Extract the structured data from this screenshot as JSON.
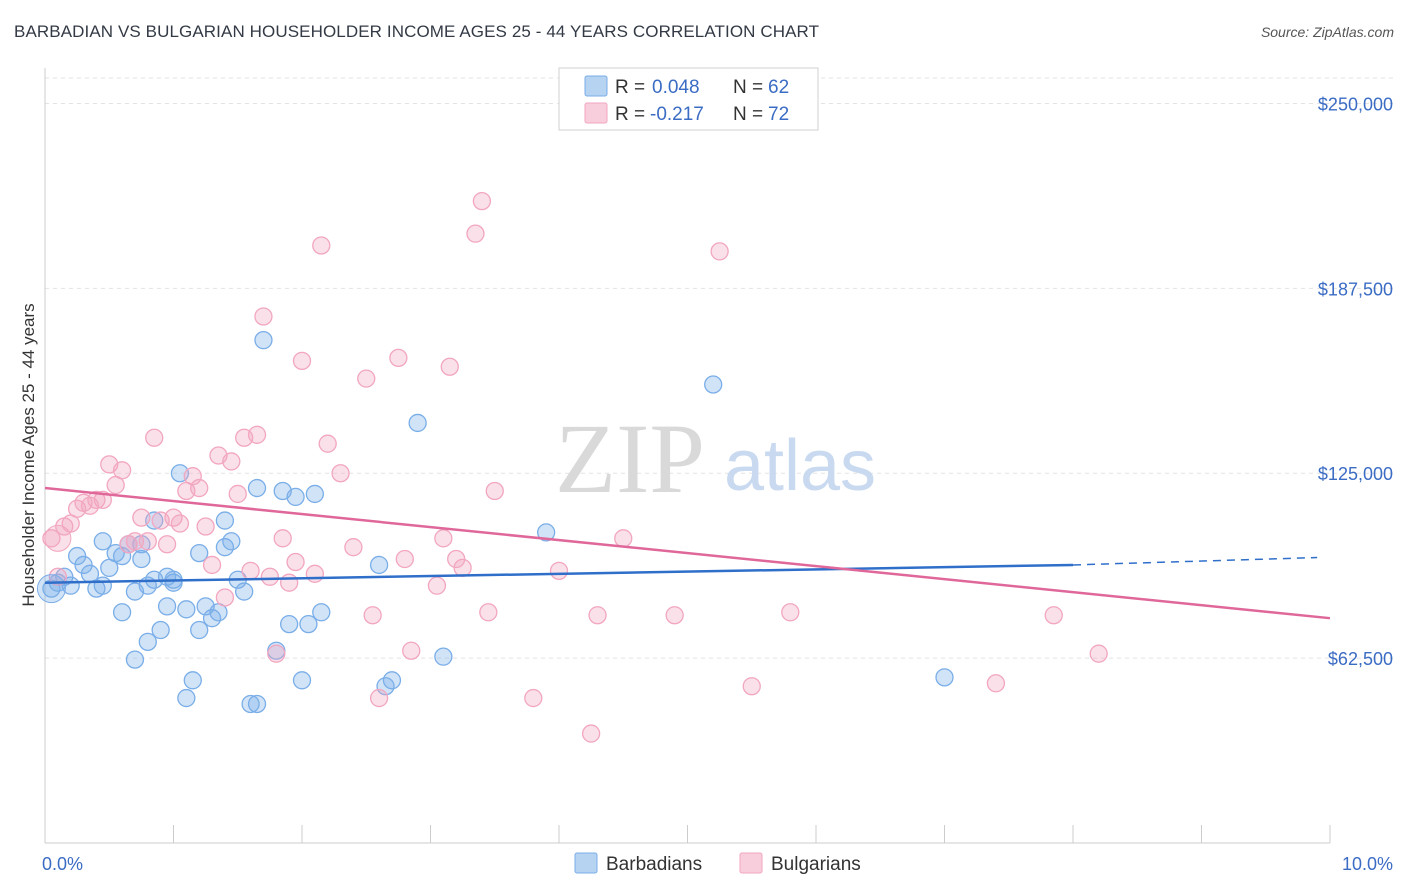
{
  "title": "BARBADIAN VS BULGARIAN HOUSEHOLDER INCOME AGES 25 - 44 YEARS CORRELATION CHART",
  "source": "Source: ZipAtlas.com",
  "watermark": {
    "zip": "ZIP",
    "atlas": "atlas"
  },
  "chart_data": {
    "type": "scatter",
    "ylabel": "Householder Income Ages 25 - 44 years",
    "x_tick_labels": [
      "0.0%",
      "10.0%"
    ],
    "y_tick_labels": [
      "$62,500",
      "$125,000",
      "$187,500",
      "$250,000"
    ],
    "y_ticks": [
      62500,
      125000,
      187500,
      250000
    ],
    "xlim": [
      0,
      10
    ],
    "ylim": [
      0,
      262000
    ],
    "grid": true,
    "legend_position": "top-center",
    "series": [
      {
        "name": "Barbadians",
        "color": "#7aaee8",
        "line_color": "#2f6fca",
        "R_label": "R =",
        "R": "0.048",
        "N_label": "N =",
        "N": "62",
        "trend": {
          "x0": 0.0,
          "y0": 88000,
          "x1": 8.0,
          "y1": 94000,
          "dash_to_x": 9.9,
          "dash_to_y": 96500
        },
        "points": [
          [
            0.05,
            86000
          ],
          [
            0.1,
            88000
          ],
          [
            0.15,
            90000
          ],
          [
            0.2,
            87000
          ],
          [
            0.25,
            97000
          ],
          [
            0.3,
            94000
          ],
          [
            0.35,
            91000
          ],
          [
            0.4,
            86000
          ],
          [
            0.45,
            87000
          ],
          [
            0.45,
            102000
          ],
          [
            0.5,
            93000
          ],
          [
            0.55,
            98000
          ],
          [
            0.6,
            97000
          ],
          [
            0.6,
            78000
          ],
          [
            0.65,
            101000
          ],
          [
            0.7,
            85000
          ],
          [
            0.75,
            101000
          ],
          [
            0.7,
            62000
          ],
          [
            0.75,
            96000
          ],
          [
            0.8,
            68000
          ],
          [
            0.8,
            87000
          ],
          [
            0.85,
            89000
          ],
          [
            0.85,
            109000
          ],
          [
            0.9,
            72000
          ],
          [
            0.95,
            80000
          ],
          [
            0.95,
            90000
          ],
          [
            1.0,
            89000
          ],
          [
            1.0,
            88000
          ],
          [
            1.05,
            125000
          ],
          [
            1.1,
            49000
          ],
          [
            1.1,
            79000
          ],
          [
            1.15,
            55000
          ],
          [
            1.2,
            98000
          ],
          [
            1.2,
            72000
          ],
          [
            1.25,
            80000
          ],
          [
            1.3,
            76000
          ],
          [
            1.35,
            78000
          ],
          [
            1.4,
            100000
          ],
          [
            1.4,
            109000
          ],
          [
            1.45,
            102000
          ],
          [
            1.5,
            89000
          ],
          [
            1.55,
            85000
          ],
          [
            1.6,
            47000
          ],
          [
            1.65,
            47000
          ],
          [
            1.65,
            120000
          ],
          [
            1.7,
            170000
          ],
          [
            1.8,
            65000
          ],
          [
            1.85,
            119000
          ],
          [
            1.9,
            74000
          ],
          [
            1.95,
            117000
          ],
          [
            2.0,
            55000
          ],
          [
            2.1,
            118000
          ],
          [
            2.15,
            78000
          ],
          [
            2.05,
            74000
          ],
          [
            2.6,
            94000
          ],
          [
            2.7,
            55000
          ],
          [
            2.65,
            53000
          ],
          [
            2.9,
            142000
          ],
          [
            3.1,
            63000
          ],
          [
            3.9,
            105000
          ],
          [
            5.2,
            155000
          ],
          [
            7.0,
            56000
          ]
        ]
      },
      {
        "name": "Bulgarians",
        "color": "#f2a6c0",
        "line_color": "#e0679a",
        "R_label": "R =",
        "R": "-0.217",
        "N_label": "N =",
        "N": "72",
        "trend": {
          "x0": 0.0,
          "y0": 120000,
          "x1": 10.0,
          "y1": 76000
        },
        "points": [
          [
            0.05,
            103000
          ],
          [
            0.1,
            90000
          ],
          [
            0.15,
            107000
          ],
          [
            0.2,
            108000
          ],
          [
            0.25,
            113000
          ],
          [
            0.3,
            115000
          ],
          [
            0.35,
            114000
          ],
          [
            0.4,
            116000
          ],
          [
            0.45,
            116000
          ],
          [
            0.5,
            128000
          ],
          [
            0.55,
            121000
          ],
          [
            0.6,
            126000
          ],
          [
            0.65,
            101000
          ],
          [
            0.7,
            102000
          ],
          [
            0.75,
            110000
          ],
          [
            0.8,
            102000
          ],
          [
            0.85,
            137000
          ],
          [
            0.9,
            109000
          ],
          [
            0.95,
            101000
          ],
          [
            1.0,
            110000
          ],
          [
            1.05,
            108000
          ],
          [
            1.1,
            119000
          ],
          [
            1.15,
            124000
          ],
          [
            1.2,
            120000
          ],
          [
            1.25,
            107000
          ],
          [
            1.3,
            94000
          ],
          [
            1.35,
            131000
          ],
          [
            1.4,
            83000
          ],
          [
            1.45,
            129000
          ],
          [
            1.5,
            118000
          ],
          [
            1.55,
            137000
          ],
          [
            1.6,
            92000
          ],
          [
            1.65,
            138000
          ],
          [
            1.7,
            178000
          ],
          [
            1.75,
            90000
          ],
          [
            1.8,
            64000
          ],
          [
            1.85,
            103000
          ],
          [
            1.9,
            88000
          ],
          [
            1.95,
            95000
          ],
          [
            2.0,
            163000
          ],
          [
            2.1,
            91000
          ],
          [
            2.15,
            202000
          ],
          [
            2.2,
            135000
          ],
          [
            2.3,
            125000
          ],
          [
            2.4,
            100000
          ],
          [
            2.5,
            157000
          ],
          [
            2.55,
            77000
          ],
          [
            2.6,
            49000
          ],
          [
            2.75,
            164000
          ],
          [
            2.8,
            96000
          ],
          [
            2.85,
            65000
          ],
          [
            3.05,
            87000
          ],
          [
            3.1,
            103000
          ],
          [
            3.15,
            161000
          ],
          [
            3.2,
            96000
          ],
          [
            3.25,
            93000
          ],
          [
            3.35,
            206000
          ],
          [
            3.4,
            217000
          ],
          [
            3.45,
            78000
          ],
          [
            3.5,
            119000
          ],
          [
            3.8,
            49000
          ],
          [
            4.0,
            92000
          ],
          [
            4.25,
            37000
          ],
          [
            4.3,
            77000
          ],
          [
            4.5,
            103000
          ],
          [
            4.9,
            77000
          ],
          [
            5.25,
            200000
          ],
          [
            5.5,
            53000
          ],
          [
            5.8,
            78000
          ],
          [
            7.4,
            54000
          ],
          [
            7.85,
            77000
          ],
          [
            8.2,
            64000
          ]
        ]
      }
    ]
  }
}
